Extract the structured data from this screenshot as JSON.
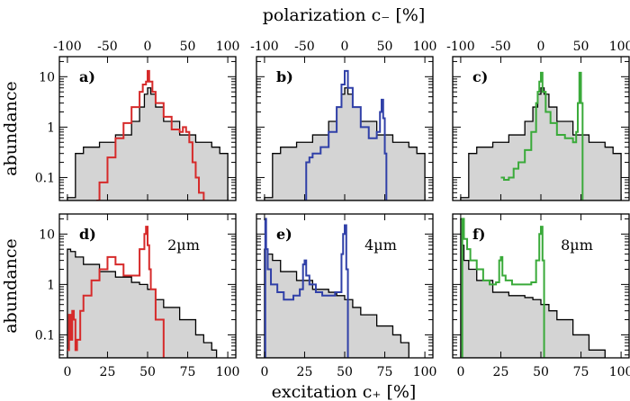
{
  "figure": {
    "top_xlabel": "polarization c₋ [%]",
    "bottom_xlabel": "excitation c₊ [%]",
    "ylabel": "abundance",
    "top_ticks": [
      "-100",
      "-50",
      "0",
      "50",
      "100"
    ],
    "bottom_ticks": [
      "0",
      "25",
      "50",
      "75",
      "100"
    ],
    "y_ticks": [
      "10",
      "1",
      "0.1"
    ]
  },
  "colors": {
    "reference_fill": "#d4d4d4",
    "reference_line": "#000000",
    "red": "#d62a2a",
    "blue": "#3040a8",
    "green": "#3aaa3a"
  },
  "chart_data": [
    {
      "panel": "a)",
      "annotation": "",
      "type": "line",
      "yscale": "log",
      "xlim": [
        -5,
        105
      ],
      "ylim": [
        0.035,
        25
      ],
      "reference": {
        "x": [
          0,
          5,
          10,
          20,
          30,
          40,
          45,
          48,
          50,
          52,
          55,
          60,
          70,
          80,
          90,
          95,
          100
        ],
        "y": [
          0.04,
          0.3,
          0.4,
          0.5,
          0.7,
          1.3,
          2.5,
          4.5,
          6,
          4.5,
          2.5,
          1.3,
          0.7,
          0.5,
          0.4,
          0.3,
          0.04
        ]
      },
      "series": [
        {
          "color": "red",
          "x": [
            18,
            20,
            25,
            30,
            35,
            40,
            45,
            47,
            49,
            50,
            51,
            53,
            55,
            60,
            65,
            70,
            72,
            74,
            76,
            78,
            80,
            82,
            85
          ],
          "y": [
            0.035,
            0.08,
            0.25,
            0.6,
            1.2,
            2.5,
            5,
            7,
            8,
            13,
            8,
            5,
            3,
            1.6,
            0.9,
            0.8,
            1.0,
            0.8,
            0.5,
            0.2,
            0.1,
            0.05,
            0.035
          ]
        }
      ]
    },
    {
      "panel": "b)",
      "annotation": "",
      "type": "line",
      "yscale": "log",
      "xlim": [
        -5,
        105
      ],
      "ylim": [
        0.035,
        25
      ],
      "reference": {
        "x": [
          0,
          5,
          10,
          20,
          30,
          40,
          45,
          48,
          50,
          52,
          55,
          60,
          70,
          80,
          90,
          95,
          100
        ],
        "y": [
          0.04,
          0.3,
          0.4,
          0.5,
          0.7,
          1.3,
          2.5,
          4.5,
          6,
          4.5,
          2.5,
          1.3,
          0.7,
          0.5,
          0.4,
          0.3,
          0.04
        ]
      },
      "series": [
        {
          "color": "blue",
          "x": [
            25,
            26,
            28,
            30,
            35,
            40,
            45,
            48,
            50,
            52,
            55,
            60,
            65,
            70,
            72,
            73,
            74,
            75,
            76
          ],
          "y": [
            0.035,
            0.2,
            0.25,
            0.3,
            0.4,
            0.8,
            2.5,
            7,
            13,
            6,
            2.5,
            1.0,
            0.6,
            0.8,
            2.0,
            3.5,
            1.5,
            0.3,
            0.035
          ]
        }
      ]
    },
    {
      "panel": "c)",
      "annotation": "",
      "type": "line",
      "yscale": "log",
      "xlim": [
        -5,
        105
      ],
      "ylim": [
        0.035,
        25
      ],
      "reference": {
        "x": [
          0,
          5,
          10,
          20,
          30,
          40,
          45,
          48,
          50,
          52,
          55,
          60,
          70,
          80,
          90,
          95,
          100
        ],
        "y": [
          0.04,
          0.3,
          0.4,
          0.5,
          0.7,
          1.3,
          2.5,
          4.5,
          6,
          4.5,
          2.5,
          1.3,
          0.7,
          0.5,
          0.4,
          0.3,
          0.04
        ]
      },
      "series": [
        {
          "color": "green",
          "x": [
            25,
            27,
            30,
            33,
            36,
            40,
            44,
            47,
            48,
            49,
            50,
            51,
            53,
            56,
            60,
            65,
            70,
            72,
            73,
            74,
            75,
            76
          ],
          "y": [
            0.1,
            0.09,
            0.1,
            0.15,
            0.2,
            0.35,
            0.8,
            3,
            5,
            8,
            12,
            5,
            2,
            1.2,
            0.7,
            0.6,
            0.5,
            0.8,
            3,
            12,
            3,
            0.035
          ]
        }
      ]
    },
    {
      "panel": "d)",
      "annotation": "2µm",
      "type": "line",
      "yscale": "log",
      "xlim": [
        -5,
        105
      ],
      "ylim": [
        0.035,
        25
      ],
      "reference": {
        "x": [
          0,
          2,
          5,
          10,
          20,
          30,
          40,
          45,
          50,
          55,
          60,
          70,
          80,
          85,
          90,
          93
        ],
        "y": [
          5,
          4.5,
          3.5,
          2.5,
          1.8,
          1.4,
          1.1,
          1.0,
          0.8,
          0.5,
          0.35,
          0.2,
          0.1,
          0.07,
          0.05,
          0.035
        ]
      },
      "series": [
        {
          "color": "red",
          "x": [
            0,
            1,
            2,
            3,
            4,
            5,
            6,
            8,
            10,
            15,
            20,
            25,
            30,
            35,
            40,
            45,
            48,
            49,
            50,
            51,
            52,
            55,
            60
          ],
          "y": [
            0.05,
            0.25,
            0.08,
            0.3,
            0.2,
            0.05,
            0.08,
            0.3,
            0.6,
            1.2,
            2.0,
            3.5,
            2.5,
            1.5,
            1.5,
            5,
            10,
            14,
            6,
            2,
            0.8,
            0.2,
            0.035
          ]
        }
      ]
    },
    {
      "panel": "e)",
      "annotation": "4µm",
      "type": "line",
      "yscale": "log",
      "xlim": [
        -5,
        105
      ],
      "ylim": [
        0.035,
        25
      ],
      "reference": {
        "x": [
          0,
          2,
          5,
          10,
          20,
          30,
          40,
          45,
          50,
          55,
          60,
          70,
          80,
          85,
          90
        ],
        "y": [
          5,
          4,
          3,
          1.8,
          1.2,
          0.8,
          0.7,
          0.6,
          0.5,
          0.35,
          0.25,
          0.15,
          0.1,
          0.07,
          0.05
        ]
      },
      "series": [
        {
          "color": "blue",
          "x": [
            0,
            0.5,
            1,
            2,
            4,
            8,
            12,
            18,
            22,
            24,
            25,
            26,
            28,
            32,
            36,
            40,
            44,
            48,
            49,
            50,
            51,
            52
          ],
          "y": [
            0.035,
            20,
            5,
            2,
            1,
            0.7,
            0.5,
            0.6,
            0.8,
            2.5,
            3,
            1.5,
            1.0,
            0.7,
            0.6,
            0.6,
            0.7,
            4,
            10,
            15,
            2,
            0.035
          ]
        }
      ]
    },
    {
      "panel": "f)",
      "annotation": "8µm",
      "type": "line",
      "yscale": "log",
      "xlim": [
        -5,
        105
      ],
      "ylim": [
        0.035,
        25
      ],
      "reference": {
        "x": [
          0,
          1,
          2,
          5,
          10,
          20,
          30,
          40,
          45,
          50,
          55,
          60,
          70,
          80,
          90
        ],
        "y": [
          20,
          6,
          3,
          2,
          1.2,
          0.7,
          0.6,
          0.55,
          0.5,
          0.4,
          0.3,
          0.2,
          0.1,
          0.05,
          0.035
        ]
      },
      "series": [
        {
          "color": "green",
          "x": [
            0,
            1,
            2,
            4,
            6,
            10,
            14,
            18,
            22,
            24,
            25,
            26,
            28,
            32,
            38,
            44,
            47,
            49,
            50,
            51,
            52
          ],
          "y": [
            0.035,
            20,
            8,
            5,
            3,
            2,
            1.2,
            1.0,
            1.1,
            3,
            3.5,
            1.5,
            1.2,
            1.0,
            1.0,
            1.1,
            3,
            10,
            14,
            3,
            0.035
          ]
        }
      ]
    }
  ]
}
